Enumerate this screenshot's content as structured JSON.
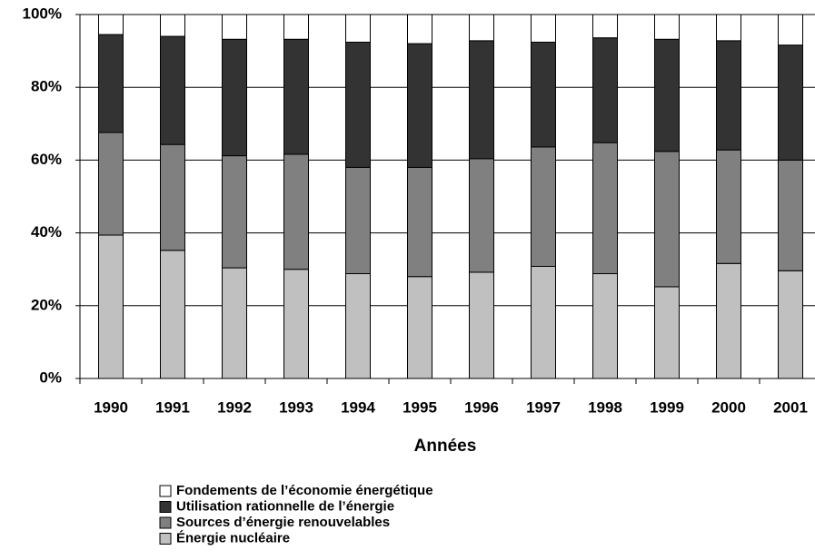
{
  "chart_data": {
    "type": "stacked_bar",
    "x_label": "Années",
    "categories": [
      "1990",
      "1991",
      "1992",
      "1993",
      "1994",
      "1995",
      "1996",
      "1997",
      "1998",
      "1999",
      "2000",
      "2001"
    ],
    "series": [
      {
        "name": "Énergie nucléaire",
        "color": "#c0c0c0",
        "values": [
          39.4,
          35.2,
          30.4,
          30,
          28.8,
          28,
          29.2,
          30.8,
          28.8,
          25.2,
          31.6,
          29.6
        ]
      },
      {
        "name": "Sources d’énergie renouvelables",
        "color": "#808080",
        "values": [
          28.2,
          29.1,
          30.8,
          31.6,
          29.2,
          30,
          31.2,
          32.8,
          36,
          37.2,
          31.2,
          30.4
        ]
      },
      {
        "name": "Utilisation rationnelle de l’énergie",
        "color": "#333333",
        "values": [
          26.9,
          29.7,
          32,
          31.6,
          34.4,
          34,
          32.4,
          28.8,
          28.8,
          30.8,
          30,
          31.6
        ]
      },
      {
        "name": "Fondements de l’économie énergétique",
        "color": "#ffffff",
        "values": [
          5.5,
          6,
          6.8,
          6.8,
          7.6,
          8,
          7.2,
          7.6,
          6.4,
          6.8,
          7.2,
          8.4
        ]
      }
    ],
    "ylim": [
      0,
      100
    ],
    "yticks": [
      {
        "value": 0,
        "label": "0%"
      },
      {
        "value": 20,
        "label": "20%"
      },
      {
        "value": 40,
        "label": "40%"
      },
      {
        "value": 60,
        "label": "60%"
      },
      {
        "value": 80,
        "label": "80%"
      },
      {
        "value": 100,
        "label": "100%"
      }
    ],
    "grid": true,
    "legend": "bottom"
  }
}
